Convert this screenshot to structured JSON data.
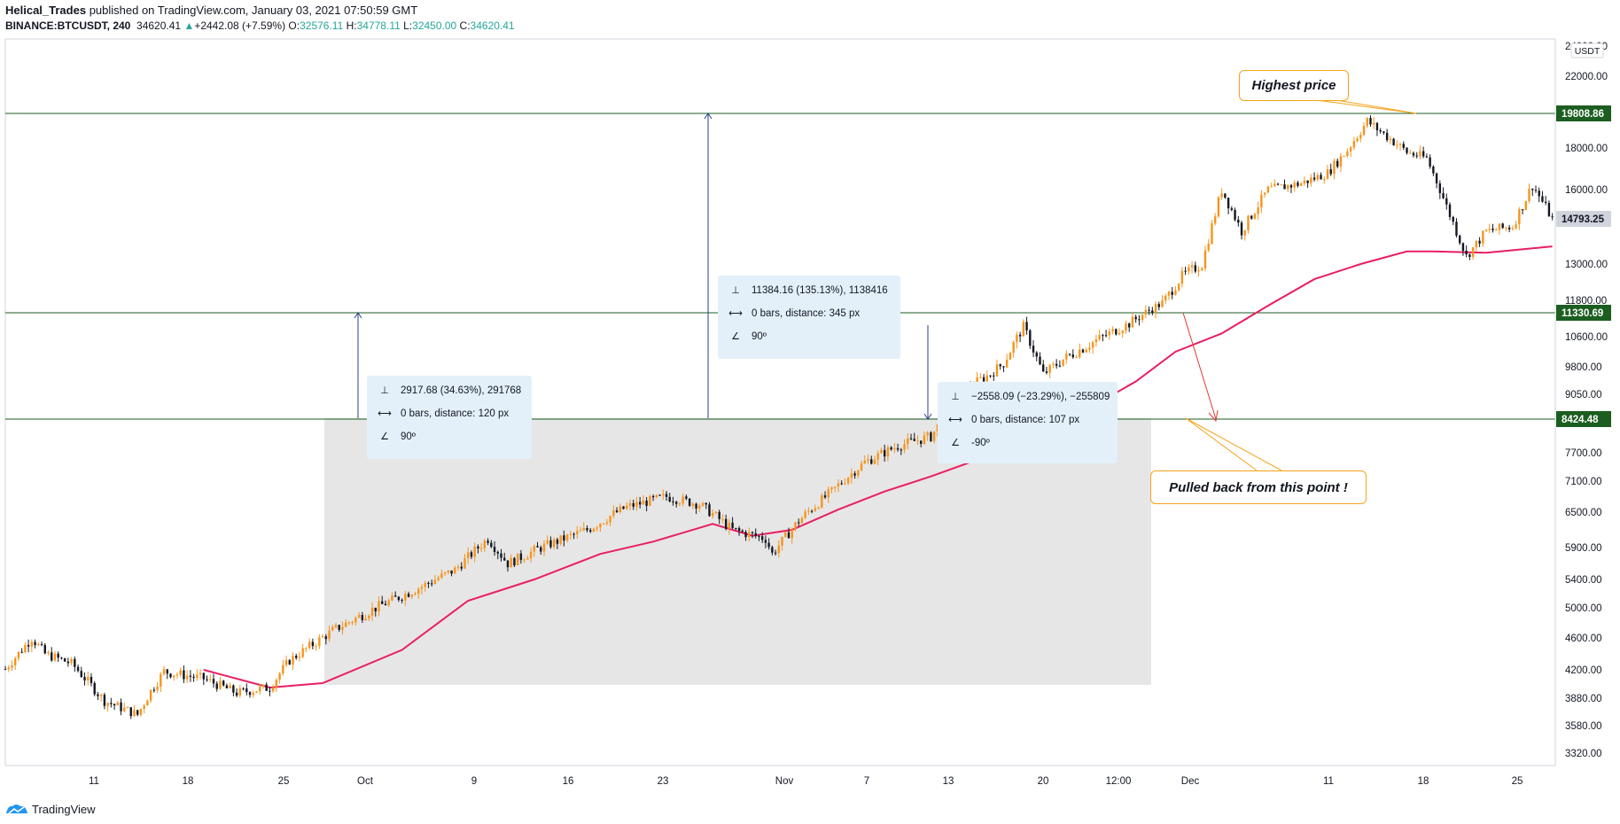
{
  "header": {
    "author": "Helical_Trades",
    "published_text": "published on TradingView.com, January 03, 2021 07:50:59 GMT",
    "symbol": "BINANCE:BTCUSDT, 240",
    "last": "34620.41",
    "change": "+2442.08 (+7.59%)",
    "o_label": "O:",
    "o": "32576.11",
    "h_label": "H:",
    "h": "34778.11",
    "l_label": "L:",
    "l": "32450.00",
    "c_label": "C:",
    "c": "34620.41"
  },
  "footer": {
    "brand": "TradingView"
  },
  "price_axis": {
    "currency": "USDT",
    "ticks": [
      "24000.00",
      "22000.00",
      "18000.00",
      "16000.00",
      "14793.25",
      "13000.00",
      "11800.00",
      "10600.00",
      "9800.00",
      "9050.00",
      "7700.00",
      "7100.00",
      "6500.00",
      "5900.00",
      "5400.00",
      "5000.00",
      "4600.00",
      "4200.00",
      "3880.00",
      "3580.00",
      "3320.00"
    ],
    "labels": [
      "19808.86",
      "14793.25",
      "11330.69",
      "8424.48"
    ]
  },
  "time_axis": {
    "ticks": [
      "11",
      "18",
      "25",
      "Oct",
      "9",
      "16",
      "23",
      "Nov",
      "7",
      "13",
      "20",
      "12:00",
      "Dec",
      "11",
      "18",
      "25"
    ]
  },
  "measurements": [
    {
      "price": "2917.68 (34.63%), 291768",
      "bars": "0 bars, distance: 120 px",
      "angle": "90º"
    },
    {
      "price": "11384.16 (135.13%), 1138416",
      "bars": "0 bars, distance: 345 px",
      "angle": "90º"
    },
    {
      "price": "−2558.09 (−23.29%), −255809",
      "bars": "0 bars, distance: 107 px",
      "angle": "-90º"
    }
  ],
  "callouts": {
    "highest": "Highest price",
    "pulled": "Pulled back from this point !"
  },
  "colors": {
    "up": "#f7941d",
    "down": "#131722",
    "ma": "#e91e63",
    "hline": "#1b5e20",
    "label_green": "#1b5e20",
    "label_grey": "#d1d4dc",
    "measure": "#2a3f8f",
    "rect": "#e6e6e6",
    "callout_border": "#f7a21b"
  },
  "chart_data": {
    "type": "candlestick",
    "series": [
      {
        "name": "BTCUSDT",
        "kind": "candles"
      },
      {
        "name": "MA",
        "kind": "line"
      }
    ],
    "key_levels": [
      19808.86,
      11330.69,
      8424.48
    ],
    "last_price": 14793.25,
    "close_path": [
      [
        0,
        4210
      ],
      [
        8,
        4600
      ],
      [
        12,
        4400
      ],
      [
        20,
        4280
      ],
      [
        30,
        3850
      ],
      [
        40,
        3700
      ],
      [
        44,
        3960
      ],
      [
        48,
        4180
      ],
      [
        60,
        4100
      ],
      [
        70,
        3940
      ],
      [
        80,
        4000
      ],
      [
        86,
        4320
      ],
      [
        100,
        4720
      ],
      [
        112,
        5000
      ],
      [
        126,
        5300
      ],
      [
        136,
        5550
      ],
      [
        146,
        6050
      ],
      [
        152,
        5650
      ],
      [
        162,
        5900
      ],
      [
        176,
        6200
      ],
      [
        188,
        6600
      ],
      [
        200,
        6800
      ],
      [
        210,
        6650
      ],
      [
        220,
        6200
      ],
      [
        230,
        6050
      ],
      [
        232,
        5800
      ],
      [
        240,
        6350
      ],
      [
        250,
        6900
      ],
      [
        260,
        7500
      ],
      [
        270,
        7850
      ],
      [
        280,
        8050
      ],
      [
        286,
        8700
      ],
      [
        292,
        9300
      ],
      [
        298,
        9600
      ],
      [
        302,
        9900
      ],
      [
        308,
        10900
      ],
      [
        314,
        9600
      ],
      [
        320,
        10000
      ],
      [
        330,
        10500
      ],
      [
        340,
        11000
      ],
      [
        350,
        11700
      ],
      [
        356,
        12600
      ],
      [
        362,
        13000
      ],
      [
        368,
        16000
      ],
      [
        374,
        14300
      ],
      [
        382,
        16000
      ],
      [
        392,
        16300
      ],
      [
        400,
        16800
      ],
      [
        406,
        17900
      ],
      [
        412,
        19400
      ],
      [
        418,
        18600
      ],
      [
        424,
        17800
      ],
      [
        430,
        17500
      ],
      [
        436,
        15300
      ],
      [
        442,
        13300
      ],
      [
        448,
        14300
      ],
      [
        456,
        14500
      ],
      [
        462,
        16200
      ],
      [
        468,
        14793
      ]
    ],
    "ma_path": [
      [
        60,
        4200
      ],
      [
        80,
        4000
      ],
      [
        96,
        4050
      ],
      [
        120,
        4450
      ],
      [
        140,
        5100
      ],
      [
        160,
        5400
      ],
      [
        180,
        5800
      ],
      [
        196,
        6000
      ],
      [
        214,
        6300
      ],
      [
        226,
        6100
      ],
      [
        238,
        6200
      ],
      [
        252,
        6550
      ],
      [
        266,
        6900
      ],
      [
        280,
        7200
      ],
      [
        294,
        7550
      ],
      [
        306,
        7900
      ],
      [
        318,
        8400
      ],
      [
        330,
        8800
      ],
      [
        342,
        9400
      ],
      [
        354,
        10200
      ],
      [
        368,
        10700
      ],
      [
        382,
        11600
      ],
      [
        396,
        12500
      ],
      [
        410,
        13000
      ],
      [
        424,
        13500
      ],
      [
        432,
        13500
      ],
      [
        448,
        13450
      ],
      [
        468,
        13700
      ]
    ]
  }
}
